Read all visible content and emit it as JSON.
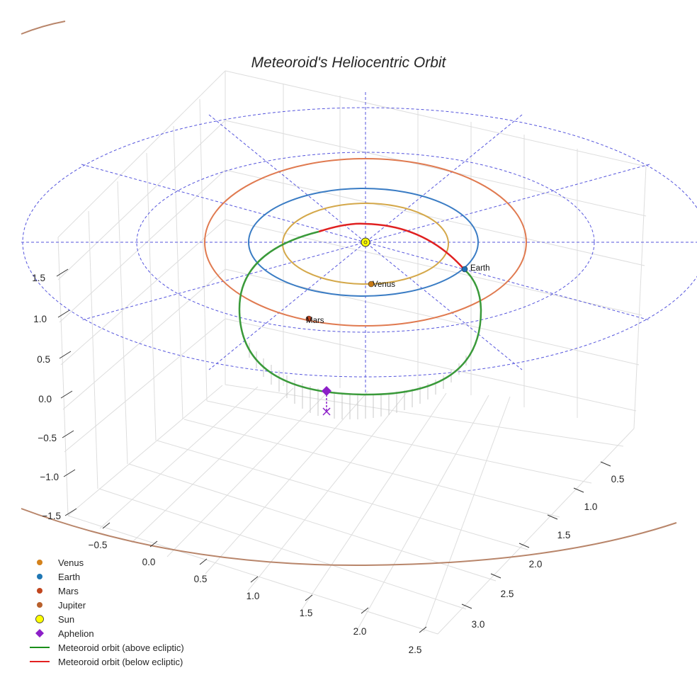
{
  "chart_data": {
    "type": "3d-orbit",
    "title": "Meteoroid's Heliocentric Orbit",
    "axes": {
      "x": {
        "ticks": [
          "−0.5",
          "0.0",
          "0.5",
          "1.0",
          "1.5",
          "2.0",
          "2.5"
        ],
        "range": [
          -0.9,
          2.7
        ]
      },
      "y": {
        "ticks": [
          "0.5",
          "1.0",
          "1.5",
          "2.0",
          "2.5",
          "3.0"
        ],
        "range": [
          0.2,
          3.3
        ]
      },
      "z": {
        "ticks": [
          "−1.5",
          "−1.0",
          "−0.5",
          "0.0",
          "0.5",
          "1.0",
          "1.5"
        ],
        "range": [
          -1.7,
          1.9
        ]
      }
    },
    "planet_orbits": [
      {
        "name": "Venus",
        "radius_au": 0.72,
        "color": "#d4a84a"
      },
      {
        "name": "Earth",
        "radius_au": 1.0,
        "color": "#3a7cc4"
      },
      {
        "name": "Mars",
        "radius_au": 1.52,
        "color": "#e07a50"
      },
      {
        "name": "Jupiter",
        "radius_au": 5.2,
        "color": "#b8856a"
      }
    ],
    "planet_positions": [
      {
        "name": "Venus",
        "label": "Venus",
        "color": "#c87a14"
      },
      {
        "name": "Earth",
        "label": "Earth",
        "color": "#1f6fb5"
      },
      {
        "name": "Mars",
        "label": "Mars",
        "color": "#c0441e"
      }
    ],
    "reference_grid": {
      "ring_radii_au": [
        2,
        3
      ],
      "color": "#5555dd",
      "style": "dashed"
    },
    "meteoroid_orbit": {
      "above_color": "#3a9a3a",
      "below_color": "#e02020"
    },
    "aphelion": {
      "label": "Aphelion",
      "color": "#8c1fc8",
      "marker": "diamond"
    },
    "sun": {
      "label": "Sun",
      "color": "#ffff00"
    },
    "legend": [
      {
        "label": "Venus",
        "marker": "dot",
        "color": "#d4821c"
      },
      {
        "label": "Earth",
        "marker": "dot",
        "color": "#1f77b4"
      },
      {
        "label": "Mars",
        "marker": "dot",
        "color": "#c1461e"
      },
      {
        "label": "Jupiter",
        "marker": "dot",
        "color": "#b8602c"
      },
      {
        "label": "Sun",
        "marker": "sun",
        "color": "#ffff00"
      },
      {
        "label": "Aphelion",
        "marker": "diamond",
        "color": "#8c1fc8"
      },
      {
        "label": "Meteoroid orbit (above ecliptic)",
        "marker": "line",
        "color": "#1a8f1a"
      },
      {
        "label": "Meteoroid orbit (below ecliptic)",
        "marker": "line",
        "color": "#e32020"
      }
    ]
  }
}
